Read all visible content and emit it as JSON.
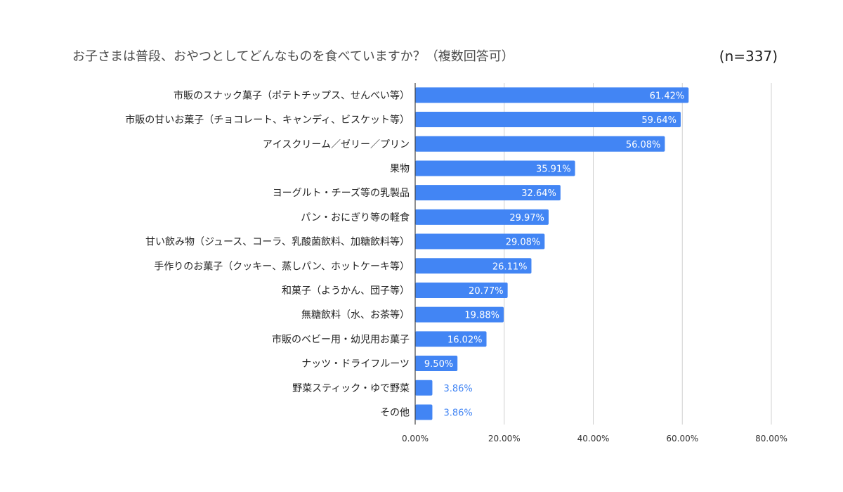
{
  "chart_data": {
    "type": "bar",
    "orientation": "horizontal",
    "title": "お子さまは普段、おやつとしてどんなものを食べていますか？（複数回答可）",
    "note": "(n=337)",
    "xlabel": "",
    "ylabel": "",
    "xlim": [
      0,
      80
    ],
    "x_ticks": [
      "0.00%",
      "20.00%",
      "40.00%",
      "60.00%",
      "80.00%"
    ],
    "grid": true,
    "bar_color": "#4285f4",
    "categories": [
      "市販のスナック菓子（ポテトチップス、せんべい等）",
      "市販の甘いお菓子（チョコレート、キャンディ、ビスケット等）",
      "アイスクリーム／ゼリー／プリン",
      "果物",
      "ヨーグルト・チーズ等の乳製品",
      "パン・おにぎり等の軽食",
      "甘い飲み物（ジュース、コーラ、乳酸菌飲料、加糖飲料等）",
      "手作りのお菓子（クッキー、蒸しパン、ホットケーキ等）",
      "和菓子（ようかん、団子等）",
      "無糖飲料（水、お茶等）",
      "市販のベビー用・幼児用お菓子",
      "ナッツ・ドライフルーツ",
      "野菜スティック・ゆで野菜",
      "その他"
    ],
    "values": [
      61.42,
      59.64,
      56.08,
      35.91,
      32.64,
      29.97,
      29.08,
      26.11,
      20.77,
      19.88,
      16.02,
      9.5,
      3.86,
      3.86
    ],
    "labels": [
      "61.42%",
      "59.64%",
      "56.08%",
      "35.91%",
      "32.64%",
      "29.97%",
      "29.08%",
      "26.11%",
      "20.77%",
      "19.88%",
      "16.02%",
      "9.50%",
      "3.86%",
      "3.86%"
    ]
  }
}
